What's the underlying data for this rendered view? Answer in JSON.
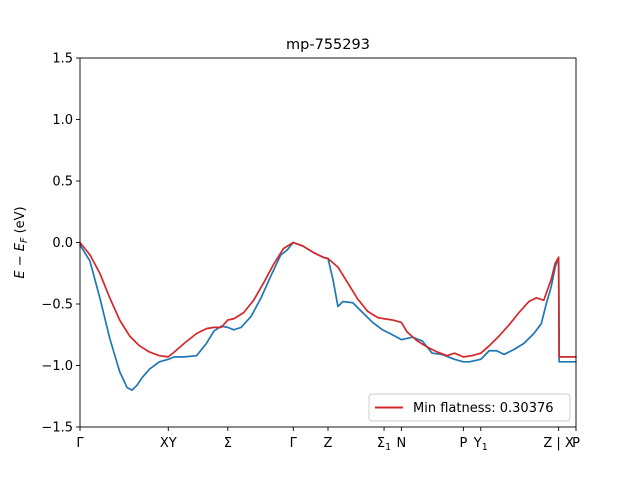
{
  "chart_data": {
    "type": "line",
    "title": "mp-755293",
    "ylabel": "E - E_F (eV)",
    "ylabel_parts": {
      "main": "E − E",
      "sub": "F",
      "unit": " (eV)"
    },
    "ylim": [
      -1.5,
      1.5
    ],
    "yticks": [
      -1.5,
      -1.0,
      -0.5,
      0.0,
      0.5,
      1.0,
      1.5
    ],
    "ytick_labels": [
      "−1.5",
      "−1.0",
      "−0.5",
      "0.0",
      "0.5",
      "1.0",
      "1.5"
    ],
    "xlim": [
      0,
      1
    ],
    "xticks": [
      {
        "pos": 0.0,
        "label": "Γ"
      },
      {
        "pos": 0.178,
        "label": "XY"
      },
      {
        "pos": 0.298,
        "label": "Σ"
      },
      {
        "pos": 0.43,
        "label": "Γ"
      },
      {
        "pos": 0.5,
        "label": "Z"
      },
      {
        "pos": 0.613,
        "label": "Σ",
        "sub": "1"
      },
      {
        "pos": 0.648,
        "label": "N"
      },
      {
        "pos": 0.773,
        "label": "P"
      },
      {
        "pos": 0.808,
        "label": "Y",
        "sub": "1"
      },
      {
        "pos": 0.965,
        "label": "Z | X"
      },
      {
        "pos": 1.0,
        "label": "P"
      }
    ],
    "legend": {
      "label": "Min flatness: 0.30376",
      "color": "#d62728",
      "placement": "lower-right"
    },
    "series": [
      {
        "color": "#1f77b4",
        "x": [
          0.0,
          0.02,
          0.04,
          0.06,
          0.08,
          0.095,
          0.105,
          0.115,
          0.125,
          0.14,
          0.16,
          0.178,
          0.19,
          0.21,
          0.235,
          0.255,
          0.27,
          0.285,
          0.298,
          0.31,
          0.325,
          0.345,
          0.365,
          0.385,
          0.405,
          0.418,
          0.43,
          0.45,
          0.47,
          0.49,
          0.5,
          0.51,
          0.52,
          0.53,
          0.55,
          0.57,
          0.59,
          0.61,
          0.625,
          0.648,
          0.67,
          0.69,
          0.71,
          0.73,
          0.755,
          0.773,
          0.785,
          0.808,
          0.825,
          0.84,
          0.855,
          0.875,
          0.895,
          0.915,
          0.93,
          0.94,
          0.95,
          0.958,
          0.965,
          0.966,
          0.98,
          1.0
        ],
        "y": [
          -0.02,
          -0.15,
          -0.45,
          -0.78,
          -1.05,
          -1.18,
          -1.2,
          -1.16,
          -1.1,
          -1.03,
          -0.97,
          -0.95,
          -0.93,
          -0.93,
          -0.92,
          -0.82,
          -0.72,
          -0.68,
          -0.69,
          -0.71,
          -0.69,
          -0.6,
          -0.45,
          -0.27,
          -0.1,
          -0.06,
          0.0,
          -0.03,
          -0.08,
          -0.12,
          -0.13,
          -0.3,
          -0.52,
          -0.48,
          -0.49,
          -0.57,
          -0.65,
          -0.71,
          -0.74,
          -0.79,
          -0.77,
          -0.8,
          -0.9,
          -0.91,
          -0.95,
          -0.97,
          -0.97,
          -0.95,
          -0.88,
          -0.88,
          -0.91,
          -0.87,
          -0.82,
          -0.74,
          -0.66,
          -0.5,
          -0.36,
          -0.2,
          -0.12,
          -0.97,
          -0.97,
          -0.97
        ]
      },
      {
        "color": "#d62728",
        "x": [
          0.0,
          0.02,
          0.04,
          0.06,
          0.08,
          0.1,
          0.12,
          0.14,
          0.16,
          0.178,
          0.19,
          0.21,
          0.235,
          0.255,
          0.27,
          0.285,
          0.298,
          0.31,
          0.33,
          0.35,
          0.37,
          0.39,
          0.41,
          0.43,
          0.45,
          0.47,
          0.49,
          0.5,
          0.52,
          0.54,
          0.56,
          0.58,
          0.6,
          0.613,
          0.63,
          0.648,
          0.66,
          0.68,
          0.7,
          0.72,
          0.74,
          0.755,
          0.773,
          0.79,
          0.808,
          0.825,
          0.845,
          0.865,
          0.885,
          0.905,
          0.92,
          0.935,
          0.95,
          0.958,
          0.965,
          0.966,
          0.98,
          1.0
        ],
        "y": [
          0.0,
          -0.1,
          -0.25,
          -0.45,
          -0.63,
          -0.76,
          -0.84,
          -0.89,
          -0.92,
          -0.93,
          -0.89,
          -0.82,
          -0.74,
          -0.7,
          -0.69,
          -0.69,
          -0.63,
          -0.62,
          -0.57,
          -0.47,
          -0.33,
          -0.18,
          -0.05,
          0.0,
          -0.03,
          -0.08,
          -0.12,
          -0.13,
          -0.2,
          -0.33,
          -0.46,
          -0.56,
          -0.61,
          -0.62,
          -0.63,
          -0.65,
          -0.73,
          -0.8,
          -0.85,
          -0.89,
          -0.92,
          -0.9,
          -0.93,
          -0.92,
          -0.9,
          -0.84,
          -0.76,
          -0.67,
          -0.57,
          -0.48,
          -0.45,
          -0.47,
          -0.3,
          -0.17,
          -0.12,
          -0.93,
          -0.93,
          -0.93
        ]
      }
    ]
  }
}
